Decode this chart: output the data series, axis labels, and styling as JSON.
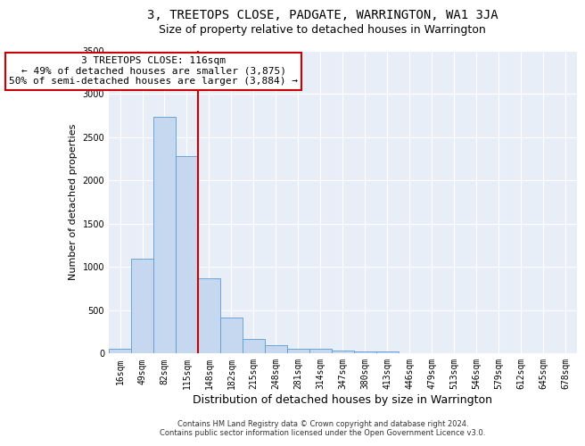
{
  "title": "3, TREETOPS CLOSE, PADGATE, WARRINGTON, WA1 3JA",
  "subtitle": "Size of property relative to detached houses in Warrington",
  "xlabel": "Distribution of detached houses by size in Warrington",
  "ylabel": "Number of detached properties",
  "footer_line1": "Contains HM Land Registry data © Crown copyright and database right 2024.",
  "footer_line2": "Contains public sector information licensed under the Open Government Licence v3.0.",
  "categories": [
    "16sqm",
    "49sqm",
    "82sqm",
    "115sqm",
    "148sqm",
    "182sqm",
    "215sqm",
    "248sqm",
    "281sqm",
    "314sqm",
    "347sqm",
    "380sqm",
    "413sqm",
    "446sqm",
    "479sqm",
    "513sqm",
    "546sqm",
    "579sqm",
    "612sqm",
    "645sqm",
    "678sqm"
  ],
  "values": [
    50,
    1100,
    2730,
    2280,
    870,
    415,
    170,
    95,
    60,
    55,
    30,
    25,
    20,
    0,
    0,
    0,
    0,
    0,
    0,
    0,
    0
  ],
  "bar_color": "#c5d8f0",
  "bar_edge_color": "#5b9bd5",
  "plot_background": "#e8eef8",
  "ylim": [
    0,
    3500
  ],
  "yticks": [
    0,
    500,
    1000,
    1500,
    2000,
    2500,
    3000,
    3500
  ],
  "red_line_index": 3,
  "annotation_line1": "3 TREETOPS CLOSE: 116sqm",
  "annotation_line2": "← 49% of detached houses are smaller (3,875)",
  "annotation_line3": "50% of semi-detached houses are larger (3,884) →",
  "annotation_box_color": "#ffffff",
  "annotation_border_color": "#cc0000",
  "title_fontsize": 10,
  "subtitle_fontsize": 9,
  "xlabel_fontsize": 9,
  "ylabel_fontsize": 8,
  "tick_fontsize": 7,
  "annotation_fontsize": 8,
  "footer_fontsize": 6
}
